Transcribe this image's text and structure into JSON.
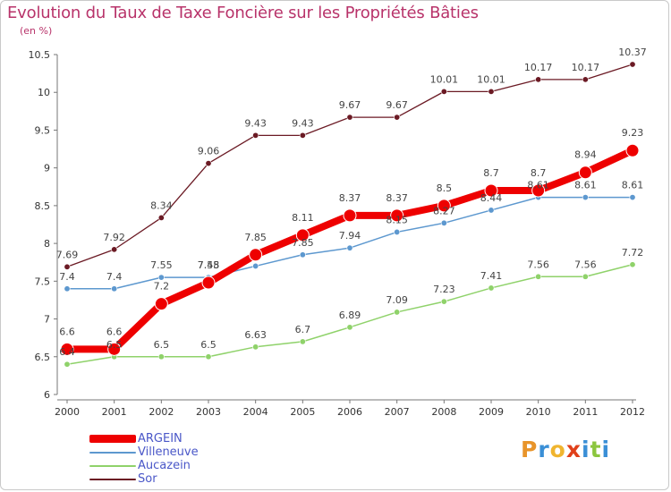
{
  "header": {
    "title": "Evolution du Taux de Taxe Foncière sur les Propriétés Bâties",
    "unit": "(en %)"
  },
  "brand": {
    "letters": [
      "P",
      "r",
      "o",
      "x",
      "i",
      "t",
      "i"
    ],
    "colors": [
      "#e8942a",
      "#3a8fd6",
      "#f0b52f",
      "#e0401a",
      "#3a8fd6",
      "#8cc63f",
      "#3a8fd6"
    ]
  },
  "chart_data": {
    "type": "line",
    "title": "Evolution du Taux de Taxe Foncière sur les Propriétés Bâties",
    "ylabel": "(en %)",
    "xlabel": "",
    "x": [
      "2000",
      "2001",
      "2002",
      "2003",
      "2004",
      "2005",
      "2006",
      "2007",
      "2008",
      "2009",
      "2010",
      "2011",
      "2012"
    ],
    "ylim": [
      6,
      10.5
    ],
    "yticks": [
      6,
      6.5,
      7,
      7.5,
      8,
      8.5,
      9,
      9.5,
      10,
      10.5
    ],
    "grid": false,
    "legend_position": "bottom-left",
    "series": [
      {
        "name": "Sor",
        "color": "#6b1a24",
        "values": [
          7.69,
          7.92,
          8.34,
          9.06,
          9.43,
          9.43,
          9.67,
          9.67,
          10.01,
          10.01,
          10.17,
          10.17,
          10.37
        ],
        "labels": [
          "7.69",
          "7.92",
          "8.34",
          "9.06",
          "9.43",
          "9.43",
          "9.67",
          "9.67",
          "10.01",
          "10.01",
          "10.17",
          "10.17",
          "10.37"
        ]
      },
      {
        "name": "Aucazein",
        "color": "#8fd26a",
        "values": [
          6.4,
          6.5,
          6.5,
          6.5,
          6.63,
          6.7,
          6.89,
          7.09,
          7.23,
          7.41,
          7.56,
          7.56,
          7.72
        ],
        "labels": [
          "6.4",
          "6.5",
          "6.5",
          "6.5",
          "6.63",
          "6.7",
          "6.89",
          "7.09",
          "7.23",
          "7.41",
          "7.56",
          "7.56",
          "7.72"
        ]
      },
      {
        "name": "Villeneuve",
        "color": "#5d98cf",
        "values": [
          7.4,
          7.4,
          7.55,
          7.55,
          7.7,
          7.85,
          7.94,
          8.15,
          8.27,
          8.44,
          8.61,
          8.61,
          8.61
        ],
        "labels": [
          "7.4",
          "7.4",
          "7.55",
          "7.55",
          "",
          "7.85",
          "7.94",
          "8.15",
          "8.27",
          "8.44",
          "8.61",
          "8.61",
          "8.61"
        ]
      },
      {
        "name": "ARGEIN",
        "color": "#ee0000",
        "values": [
          6.6,
          6.6,
          7.2,
          7.48,
          7.85,
          8.11,
          8.37,
          8.37,
          8.5,
          8.7,
          8.7,
          8.94,
          9.23
        ],
        "labels": [
          "6.6",
          "6.6",
          "7.2",
          "7.48",
          "7.85",
          "8.11",
          "8.37",
          "8.37",
          "8.5",
          "8.7",
          "8.7",
          "8.94",
          "9.23"
        ]
      }
    ]
  },
  "legend": {
    "items": [
      {
        "name": "ARGEIN",
        "color": "#ee0000"
      },
      {
        "name": "Villeneuve",
        "color": "#5d98cf"
      },
      {
        "name": "Aucazein",
        "color": "#8fd26a"
      },
      {
        "name": "Sor",
        "color": "#6b1a24"
      }
    ]
  }
}
